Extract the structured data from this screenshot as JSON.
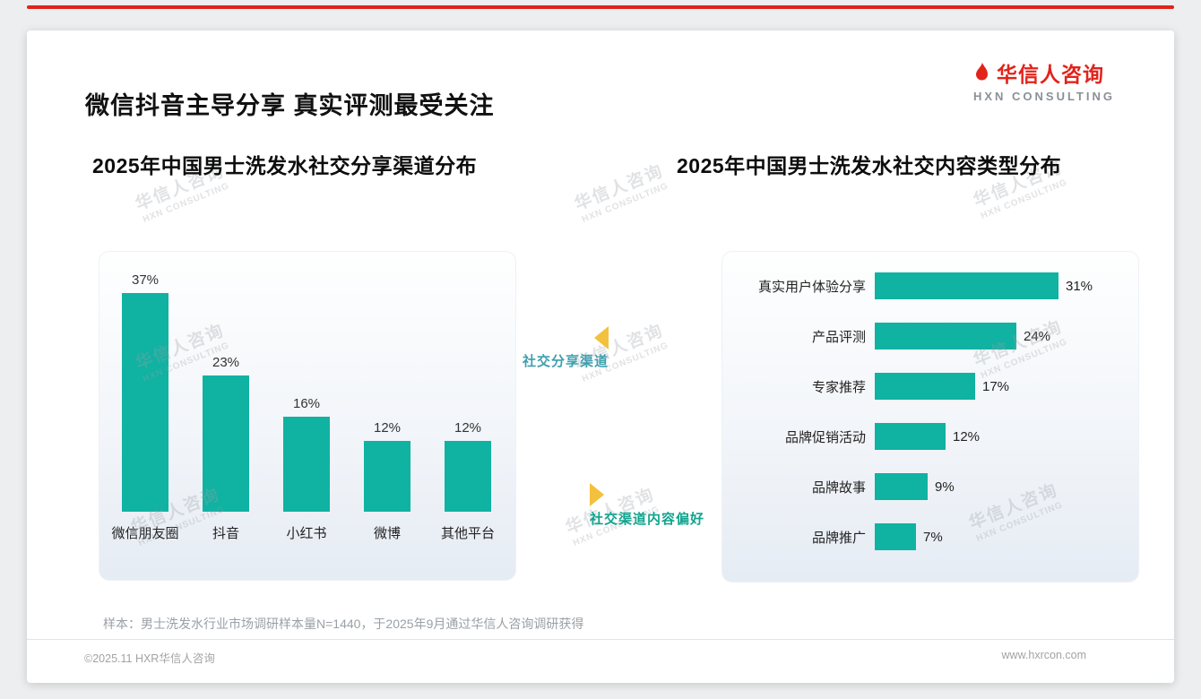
{
  "page": {
    "title": "微信抖音主导分享 真实评测最受关注",
    "accent_red": "#e2231a",
    "teal": "#10b2a2",
    "label_blue_teal": "#3f9fae",
    "label_green_teal": "#10a48e",
    "arrow_gold": "#f3c13d"
  },
  "logo": {
    "name": "华信人咨询",
    "subtitle": "HXN CONSULTING"
  },
  "watermark": {
    "line1": "华信人咨询",
    "line2": "HXN CONSULTING"
  },
  "chart_data": [
    {
      "type": "bar",
      "orientation": "vertical",
      "title": "2025年中国男士洗发水社交分享渠道分布",
      "categories": [
        "微信朋友圈",
        "抖音",
        "小红书",
        "微博",
        "其他平台"
      ],
      "values": [
        37,
        23,
        16,
        12,
        12
      ],
      "unit": "%",
      "bar_color": "#10b2a2",
      "ylim": [
        0,
        40
      ],
      "grid": false,
      "legend": false
    },
    {
      "type": "bar",
      "orientation": "horizontal",
      "title": "2025年中国男士洗发水社交内容类型分布",
      "categories": [
        "真实用户体验分享",
        "产品评测",
        "专家推荐",
        "品牌促销活动",
        "品牌故事",
        "品牌推广"
      ],
      "values": [
        31,
        24,
        17,
        12,
        9,
        7
      ],
      "unit": "%",
      "bar_color": "#10b2a2",
      "xlim": [
        0,
        35
      ],
      "grid": false,
      "legend": false
    }
  ],
  "middle_labels": {
    "share_channel": "社交分享渠道",
    "content_preference": "社交渠道内容偏好"
  },
  "footnote": "样本：男士洗发水行业市场调研样本量N=1440，于2025年9月通过华信人咨询调研获得",
  "footer": {
    "copyright": "©2025.11 HXR华信人咨询",
    "website": "www.hxrcon.com"
  }
}
